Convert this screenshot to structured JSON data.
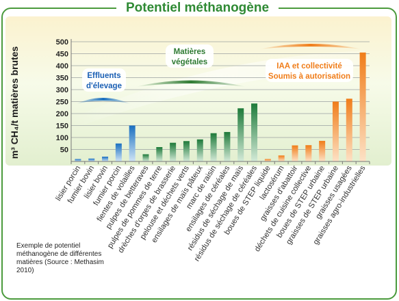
{
  "chart_data": {
    "type": "bar",
    "title": "Potentiel méthanogène",
    "ylabel": "m³ CH₄/t matières brutes",
    "ylim": [
      0,
      500
    ],
    "yticks": [
      50,
      100,
      150,
      200,
      250,
      300,
      350,
      400,
      450,
      500
    ],
    "grid": true,
    "categories": [
      "lisier porcin",
      "fumier bovin",
      "lisier bovin",
      "fumier porcin",
      "fientes de volailles",
      "pulpes de betteraves",
      "pulpes de pommes de terre",
      "drèches d'orges de brasserie",
      "pelouse et déchets verts",
      "ensilages de maïs pâteux",
      "marc de raisin",
      "ensilages de céréales",
      "résidus de séchage de maïs",
      "résidus de séchage de céréales",
      "boues de STEP liquide",
      "lactosérum",
      "graisses d'abattoir",
      "déchets de cuisine collective",
      "boues de STEP urbaine",
      "graisses de STEP urbaine",
      "graisses usagées",
      "graisses agro-industrielles"
    ],
    "values": [
      10,
      12,
      20,
      75,
      150,
      30,
      60,
      78,
      85,
      92,
      118,
      123,
      222,
      242,
      10,
      25,
      67,
      68,
      86,
      250,
      262,
      455
    ],
    "groups": [
      {
        "name": "Effluents d'élevage",
        "color": "#1a6fc0",
        "count": 5
      },
      {
        "name": "Matières végétales",
        "color": "#1e7a3a",
        "count": 9
      },
      {
        "name": "IAA et collectivité Soumis à autorisation",
        "color": "#f07d1a",
        "count": 8
      }
    ],
    "group_labels": [
      {
        "lines": [
          "Effluents",
          "d'élevage"
        ],
        "color": "#1a5fb4"
      },
      {
        "lines": [
          "Matières",
          "végétales"
        ],
        "color": "#2e7a32"
      },
      {
        "lines": [
          "IAA et collectivité",
          "Soumis à autorisation"
        ],
        "color": "#f07d1a"
      }
    ]
  },
  "caption": "Exemple de potentiel méthanogène de différentes matières (Source : Methasim 2010)"
}
